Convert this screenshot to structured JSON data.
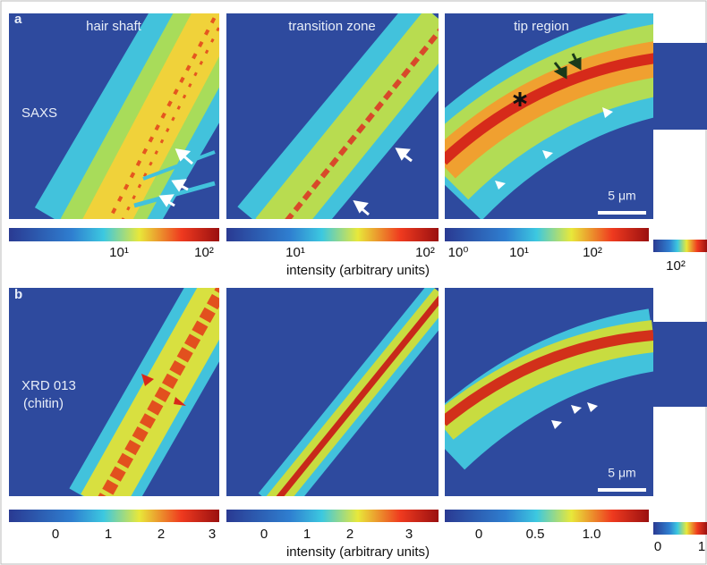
{
  "panel_a": {
    "label": "a",
    "columns": [
      "hair shaft",
      "transition zone",
      "tip region"
    ],
    "row_label": "SAXS",
    "scale_bar": "5 μm",
    "colorbars": [
      [
        "10¹",
        "10²"
      ],
      [
        "10¹",
        "10²"
      ],
      [
        "10⁰",
        "10¹",
        "10²"
      ],
      [
        "10²"
      ]
    ],
    "axis_label": "intensity (arbitrary units)"
  },
  "panel_b": {
    "label": "b",
    "row_label": [
      "XRD 013",
      "(chitin)"
    ],
    "scale_bar": "5 μm",
    "colorbars": [
      [
        "0",
        "1",
        "2",
        "3"
      ],
      [
        "0",
        "1",
        "2",
        "3"
      ],
      [
        "0",
        "0.5",
        "1.0"
      ],
      [
        "0",
        "1"
      ]
    ],
    "axis_label": "intensity (arbitrary units)"
  }
}
